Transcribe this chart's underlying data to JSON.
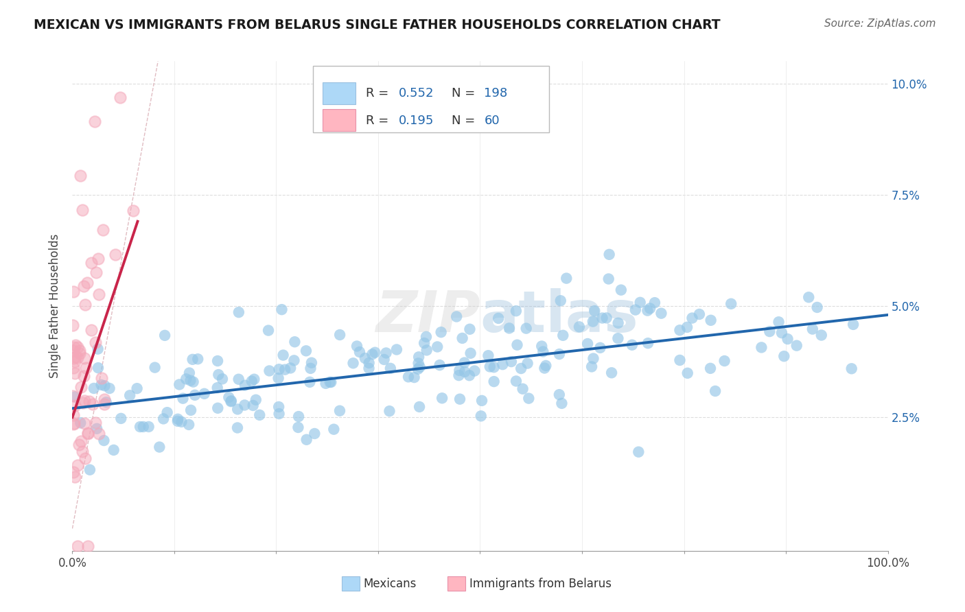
{
  "title": "MEXICAN VS IMMIGRANTS FROM BELARUS SINGLE FATHER HOUSEHOLDS CORRELATION CHART",
  "source": "Source: ZipAtlas.com",
  "ylabel": "Single Father Households",
  "watermark": "ZIPatlas",
  "legend_blue_label": "Mexicans",
  "legend_pink_label": "Immigrants from Belarus",
  "R_blue": 0.552,
  "N_blue": 198,
  "R_pink": 0.195,
  "N_pink": 60,
  "blue_color": "#94c6e7",
  "pink_color": "#f4a7b9",
  "blue_line_color": "#2166ac",
  "pink_line_color": "#c9254a",
  "diag_color": "#e0b0b0",
  "title_color": "#1a1a1a",
  "source_color": "#666666",
  "legend_text_color": "#2166ac",
  "xlim": [
    0,
    1.0
  ],
  "ylim": [
    -0.005,
    0.105
  ],
  "y_tick_vals": [
    0,
    0.025,
    0.05,
    0.075,
    0.1
  ],
  "y_tick_labels_right": [
    "",
    "2.5%",
    "5.0%",
    "7.5%",
    "10.0%"
  ],
  "blue_slope": 0.021,
  "blue_intercept": 0.027,
  "pink_slope": 0.55,
  "pink_intercept": 0.025,
  "blue_seed": 42,
  "pink_seed": 17
}
